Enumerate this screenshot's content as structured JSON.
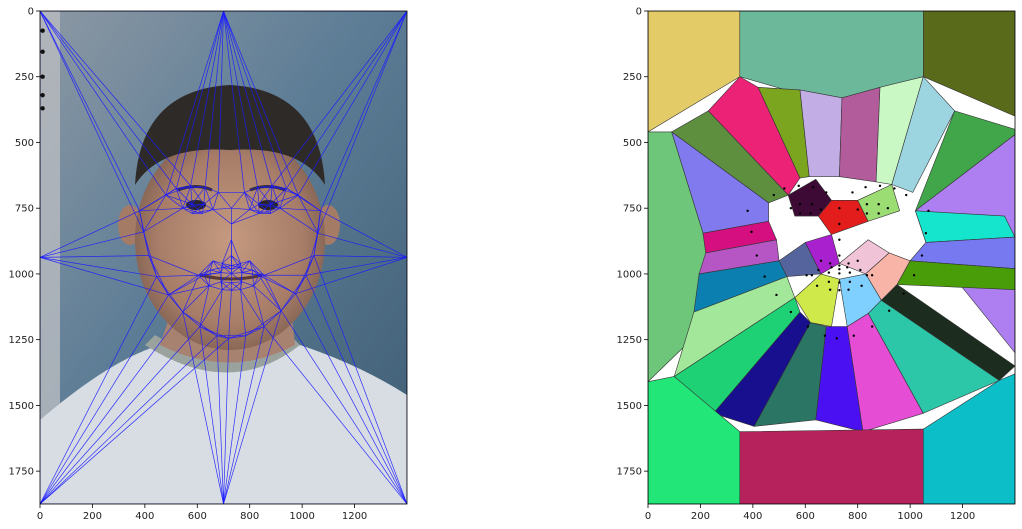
{
  "chart_data": [
    {
      "type": "image",
      "content": "photo of a boy's face with Delaunay triangulation of facial landmarks overlaid",
      "xlim": [
        0,
        1400
      ],
      "ylim": [
        1875,
        0
      ],
      "x_ticks": [
        0,
        200,
        400,
        600,
        800,
        1000,
        1200
      ],
      "y_ticks": [
        0,
        250,
        500,
        750,
        1000,
        1250,
        1500,
        1750
      ],
      "x_tick_labels": [
        "0",
        "200",
        "400",
        "600",
        "800",
        "1000",
        "1200"
      ],
      "y_tick_labels": [
        "0",
        "250",
        "500",
        "750",
        "1000",
        "1250",
        "1500",
        "1750"
      ],
      "edge_color": "#1a1aff",
      "points": [
        [
          0,
          0
        ],
        [
          700,
          0
        ],
        [
          1400,
          0
        ],
        [
          0,
          937
        ],
        [
          1400,
          937
        ],
        [
          0,
          1875
        ],
        [
          700,
          1875
        ],
        [
          1400,
          1875
        ],
        [
          380,
          760
        ],
        [
          395,
          840
        ],
        [
          415,
          930
        ],
        [
          445,
          1010
        ],
        [
          490,
          1080
        ],
        [
          545,
          1145
        ],
        [
          610,
          1200
        ],
        [
          675,
          1235
        ],
        [
          720,
          1245
        ],
        [
          785,
          1235
        ],
        [
          855,
          1200
        ],
        [
          920,
          1140
        ],
        [
          975,
          1075
        ],
        [
          1015,
          1005
        ],
        [
          1045,
          930
        ],
        [
          1060,
          845
        ],
        [
          1070,
          760
        ],
        [
          480,
          700
        ],
        [
          520,
          675
        ],
        [
          575,
          665
        ],
        [
          630,
          670
        ],
        [
          680,
          690
        ],
        [
          780,
          690
        ],
        [
          830,
          670
        ],
        [
          885,
          665
        ],
        [
          940,
          675
        ],
        [
          985,
          700
        ],
        [
          730,
          750
        ],
        [
          730,
          810
        ],
        [
          730,
          870
        ],
        [
          730,
          930
        ],
        [
          660,
          950
        ],
        [
          695,
          960
        ],
        [
          730,
          968
        ],
        [
          765,
          960
        ],
        [
          800,
          950
        ],
        [
          545,
          750
        ],
        [
          580,
          735
        ],
        [
          625,
          735
        ],
        [
          660,
          755
        ],
        [
          620,
          770
        ],
        [
          580,
          770
        ],
        [
          800,
          755
        ],
        [
          835,
          735
        ],
        [
          880,
          735
        ],
        [
          915,
          750
        ],
        [
          880,
          770
        ],
        [
          835,
          770
        ],
        [
          605,
          1005
        ],
        [
          650,
          985
        ],
        [
          700,
          975
        ],
        [
          730,
          982
        ],
        [
          760,
          975
        ],
        [
          810,
          985
        ],
        [
          855,
          1005
        ],
        [
          815,
          1045
        ],
        [
          765,
          1060
        ],
        [
          730,
          1062
        ],
        [
          695,
          1060
        ],
        [
          645,
          1045
        ],
        [
          625,
          1005
        ],
        [
          690,
          995
        ],
        [
          730,
          998
        ],
        [
          770,
          995
        ],
        [
          835,
          1005
        ],
        [
          770,
          1030
        ],
        [
          730,
          1033
        ],
        [
          690,
          1030
        ]
      ],
      "note_markers": "dark dots along left edge at y=75,155,250,320,370"
    },
    {
      "type": "voronoi",
      "xlim": [
        0,
        1400
      ],
      "ylim": [
        1875,
        0
      ],
      "x_ticks": [
        0,
        200,
        400,
        600,
        800,
        1000,
        1200
      ],
      "y_ticks": [
        0,
        250,
        500,
        750,
        1000,
        1250,
        1500,
        1750
      ],
      "x_tick_labels": [
        "0",
        "200",
        "400",
        "600",
        "800",
        "1000",
        "1200"
      ],
      "y_tick_labels": [
        "0",
        "250",
        "500",
        "750",
        "1000",
        "1250",
        "1500",
        "1750"
      ],
      "point_color": "#000000",
      "cell_edge_color": "#333333",
      "cell_colors": [
        "#e3cb68",
        "#6cb89a",
        "#596a1a",
        "#ec2277",
        "#7ba41f",
        "#c2aee4",
        "#b35c9b",
        "#c9f8c4",
        "#9cd4e0",
        "#41a549",
        "#5e8f3f",
        "#8179ee",
        "#6dc67a",
        "#ad7ff0",
        "#d60f80",
        "#b656c4",
        "#0b80b0",
        "#a3e79a",
        "#1fd175",
        "#170f8d",
        "#2b7565",
        "#4b10f1",
        "#e54ed4",
        "#2cc7a8",
        "#1c2c1e",
        "#22e677",
        "#b6235c",
        "#0cbec8",
        "#14e5cc",
        "#7779f0",
        "#499d08",
        "#56649e",
        "#a920cf",
        "#f0c4d6",
        "#f9b4a8",
        "#cfe84a",
        "#7fd0ff",
        "#3d0a36",
        "#e31c1c",
        "#9bdc73"
      ]
    }
  ]
}
